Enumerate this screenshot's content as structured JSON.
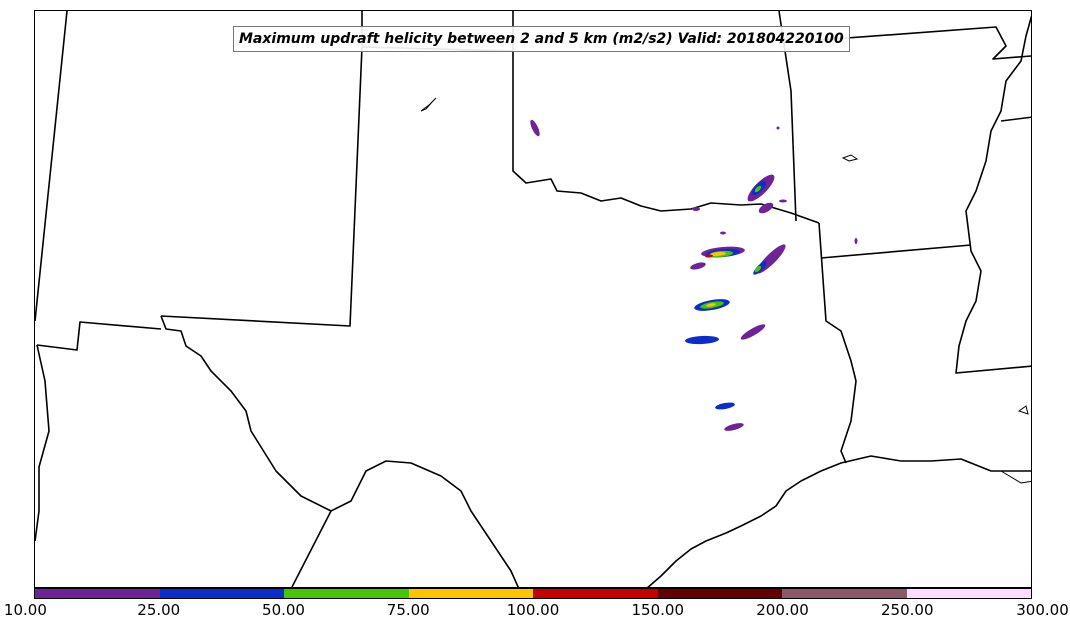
{
  "title": "Maximum updraft helicity between 2 and 5 km (m2/s2) Valid: 201804220100",
  "colorbar": {
    "ticks": [
      "10.00",
      "25.00",
      "50.00",
      "75.00",
      "100.00",
      "150.00",
      "200.00",
      "250.00",
      "300.00"
    ],
    "colors": [
      "#6e2496",
      "#0a2dcc",
      "#46c40a",
      "#ffc400",
      "#c40000",
      "#640000",
      "#8a5a6a",
      "#ffdcff"
    ]
  },
  "region": "Southern Plains / Texas-Oklahoma"
}
